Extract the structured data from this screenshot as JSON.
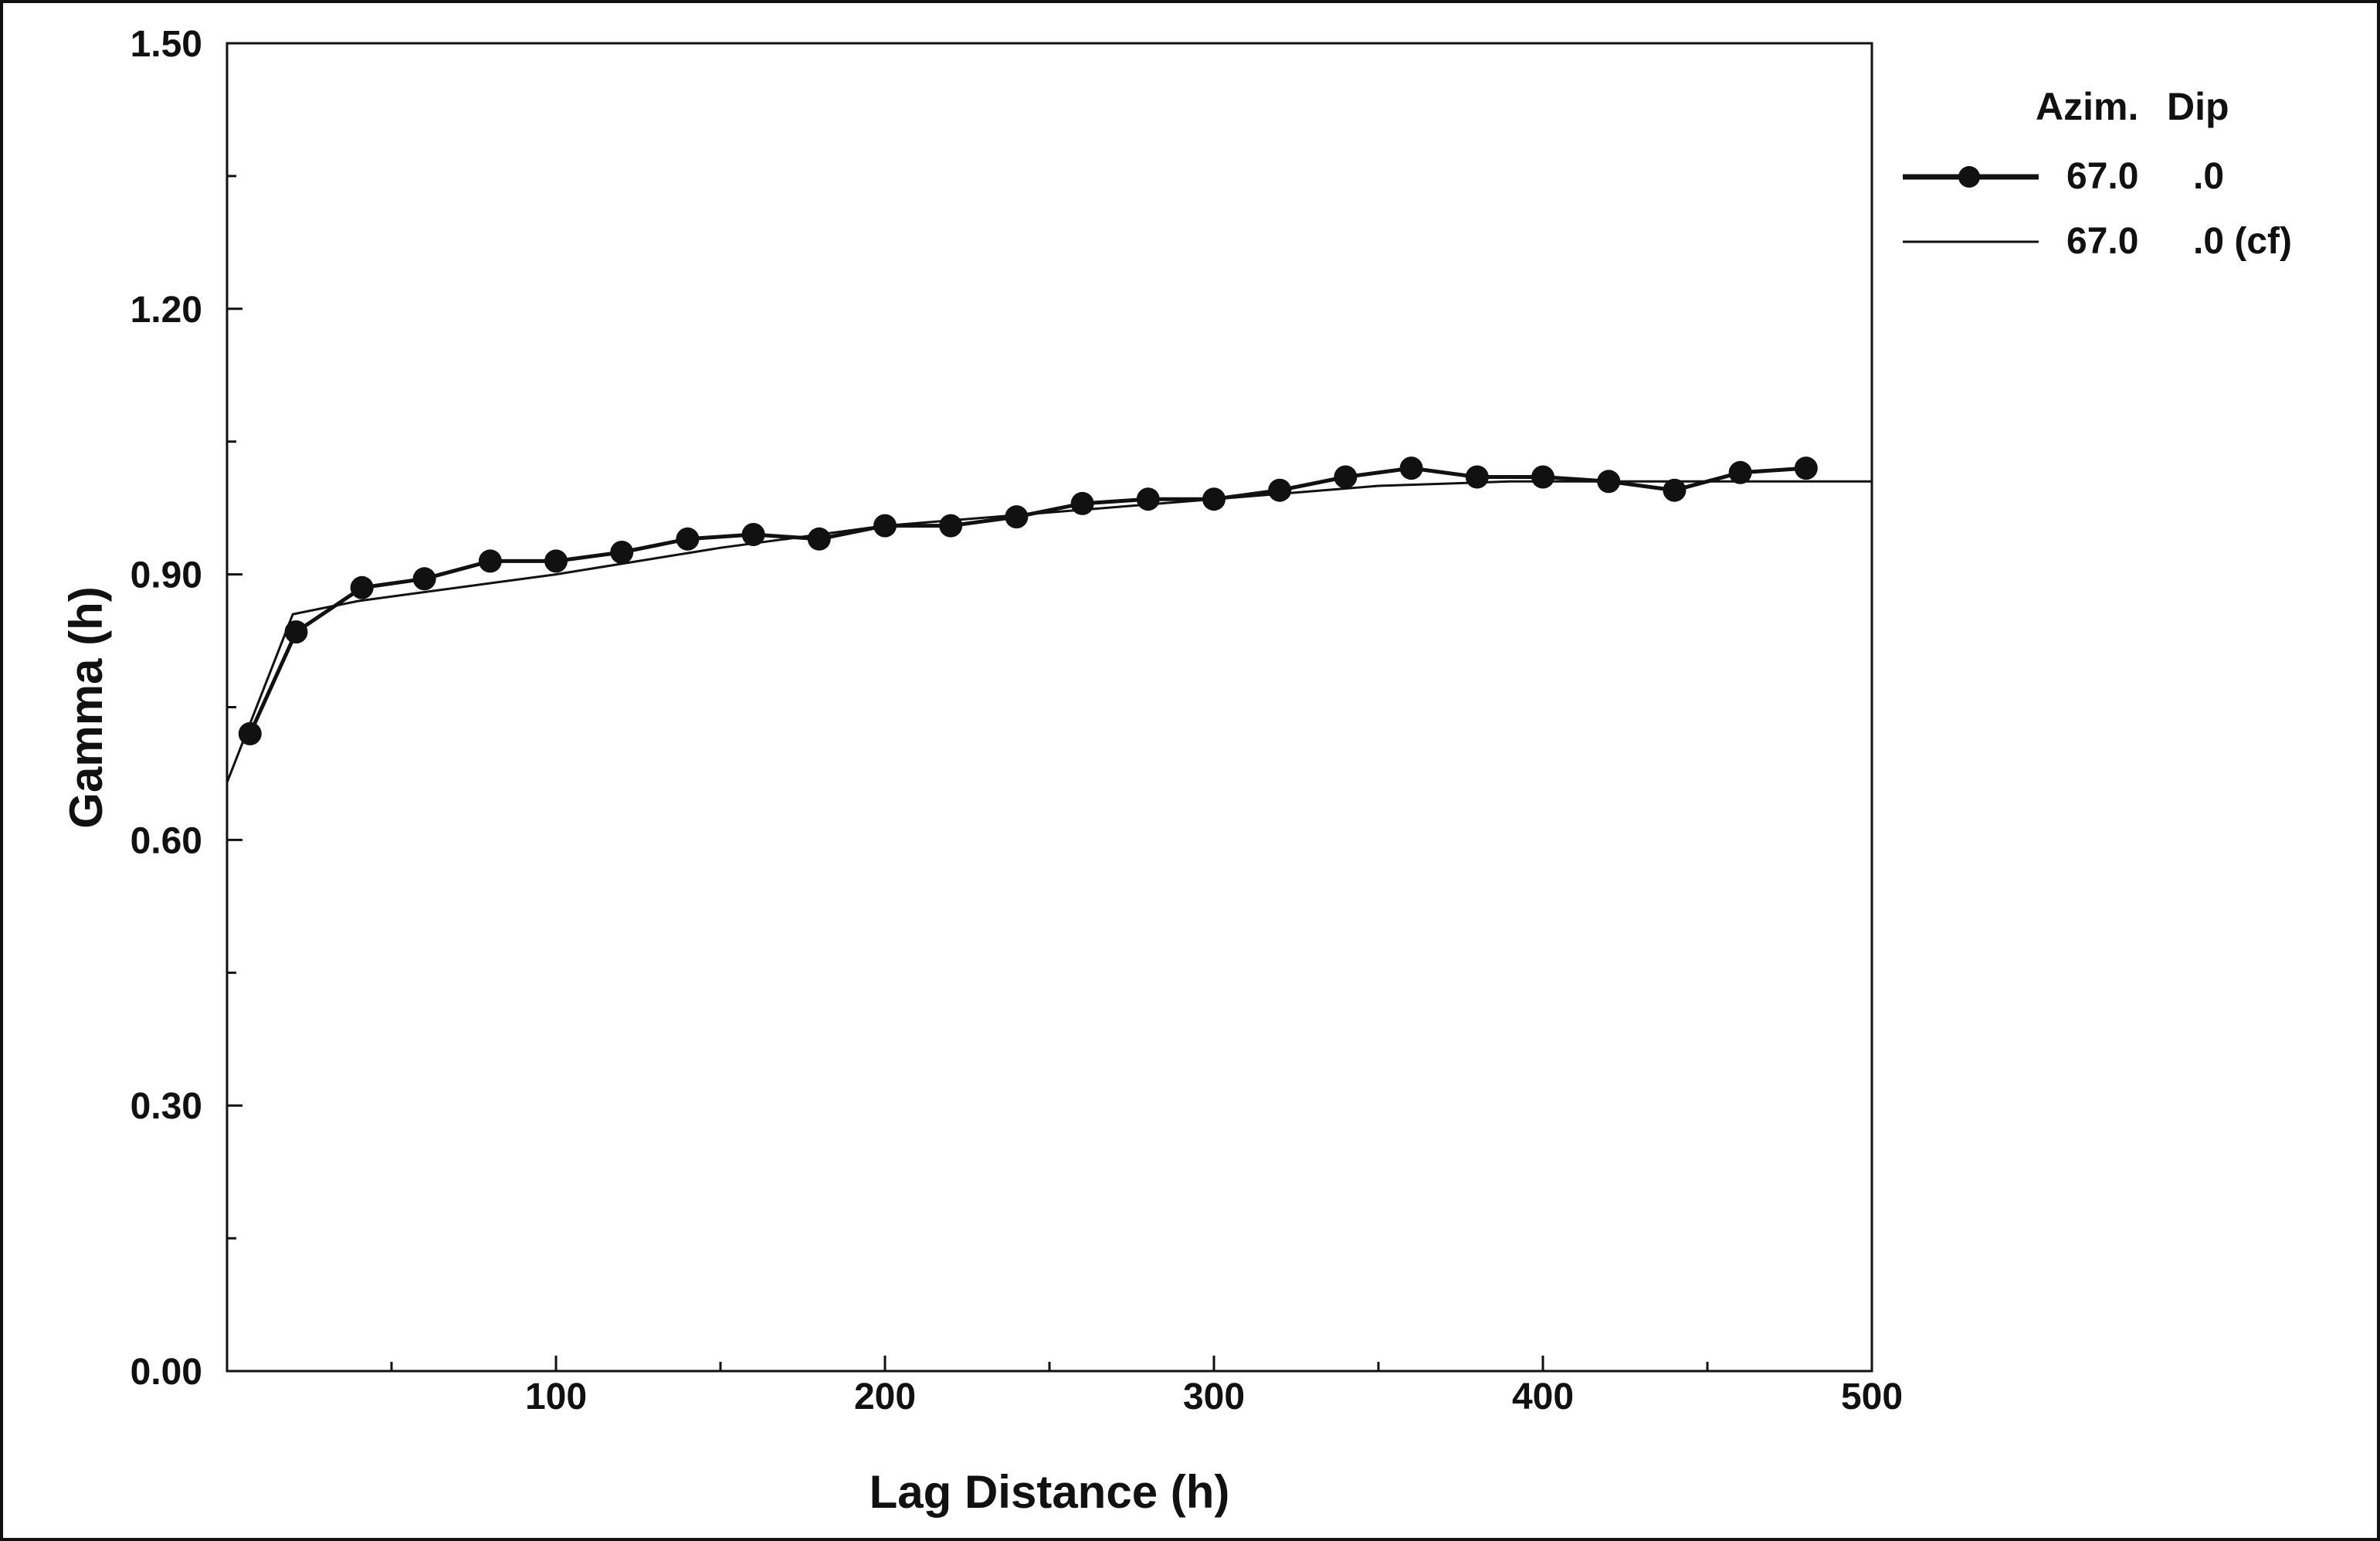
{
  "chart_data": {
    "type": "line",
    "title": "",
    "xlabel": "Lag Distance (h)",
    "ylabel": "Gamma (h)",
    "xlim": [
      0,
      500
    ],
    "ylim": [
      0,
      1.5
    ],
    "x_ticks": [
      {
        "value": 100,
        "label": "100"
      },
      {
        "value": 200,
        "label": "200"
      },
      {
        "value": 300,
        "label": "300"
      },
      {
        "value": 400,
        "label": "400"
      },
      {
        "value": 500,
        "label": "500"
      }
    ],
    "x_minor_ticks": [
      50,
      150,
      250,
      350,
      450
    ],
    "y_ticks": [
      {
        "value": 0,
        "label": "0.00"
      },
      {
        "value": 0.3,
        "label": "0.30"
      },
      {
        "value": 0.6,
        "label": "0.60"
      },
      {
        "value": 0.9,
        "label": "0.90"
      },
      {
        "value": 1.2,
        "label": "1.20"
      },
      {
        "value": 1.5,
        "label": "1.50"
      }
    ],
    "y_minor_ticks": [
      0.15,
      0.45,
      0.75,
      1.05,
      1.35
    ],
    "grid": false,
    "legend": {
      "placement": "right",
      "headers": [
        "Azim.",
        "Dip"
      ]
    },
    "series": [
      {
        "azim": "67.0",
        "dip": ".0",
        "style": "line-with-markers",
        "color": "#111111",
        "x": [
          7,
          21,
          41,
          60,
          80,
          100,
          120,
          140,
          160,
          180,
          200,
          220,
          240,
          260,
          280,
          300,
          320,
          340,
          360,
          380,
          400,
          420,
          440,
          460,
          480
        ],
        "y": [
          0.72,
          0.835,
          0.885,
          0.895,
          0.915,
          0.915,
          0.925,
          0.94,
          0.945,
          0.94,
          0.955,
          0.955,
          0.965,
          0.98,
          0.985,
          0.985,
          0.995,
          1.01,
          1.02,
          1.01,
          1.01,
          1.005,
          0.995,
          1.015,
          1.02
        ]
      },
      {
        "azim": "67.0",
        "dip": ".0 (cf)",
        "style": "line",
        "color": "#111111",
        "x": [
          0,
          20,
          40,
          100,
          150,
          200,
          250,
          300,
          350,
          390,
          500
        ],
        "y": [
          0.665,
          0.855,
          0.87,
          0.9,
          0.93,
          0.955,
          0.97,
          0.985,
          1.0,
          1.005,
          1.005
        ]
      }
    ]
  }
}
